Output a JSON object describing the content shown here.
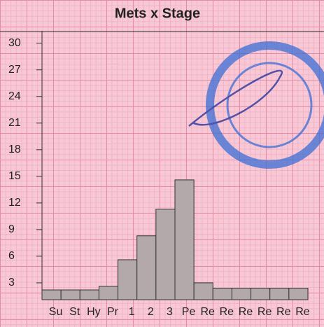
{
  "chart_data": {
    "type": "bar",
    "title": "Mets x Stage",
    "categories": [
      "Su",
      "St",
      "Hy",
      "Pr",
      "1",
      "2",
      "3",
      "Pe",
      "Re",
      "Re",
      "Re",
      "Re",
      "Re",
      "Re"
    ],
    "values": [
      2.2,
      2.2,
      2.2,
      2.6,
      5.6,
      8.3,
      11.3,
      14.6,
      3.0,
      2.4,
      2.4,
      2.4,
      2.4,
      2.4
    ],
    "color": "#b3a9ab",
    "ylim": [
      1.1,
      31.4
    ],
    "yticks": [
      3,
      6,
      9,
      12,
      15,
      18,
      21,
      24,
      27,
      30
    ],
    "grid": false
  }
}
